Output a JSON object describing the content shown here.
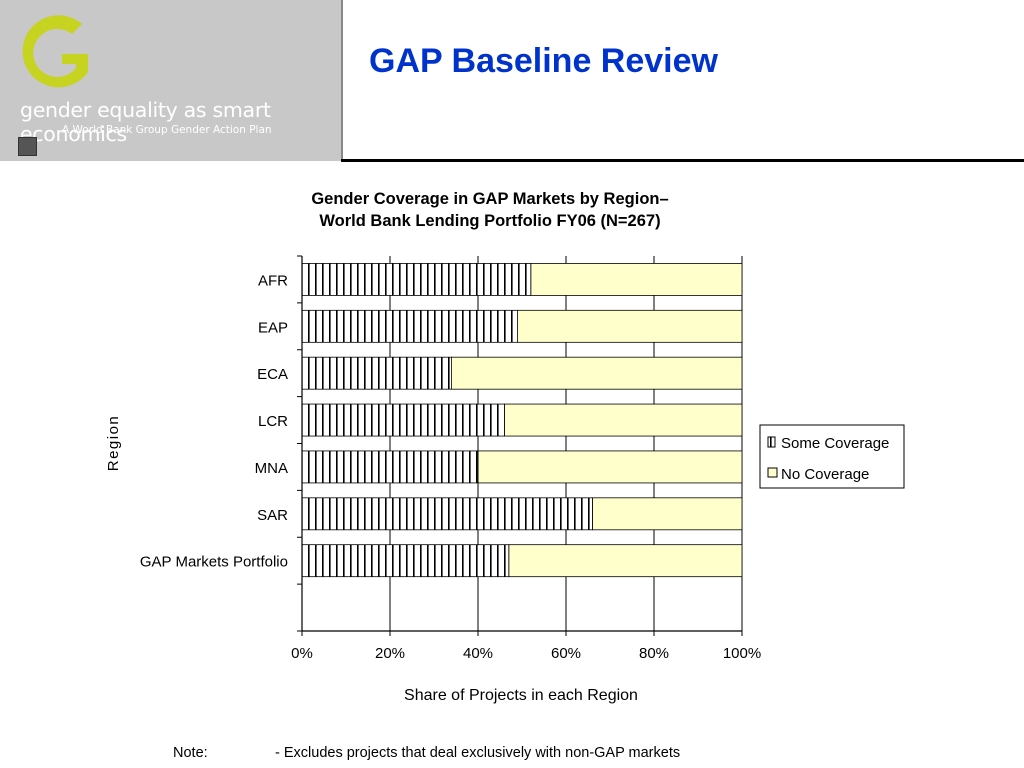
{
  "header": {
    "title": "GAP Baseline Review",
    "logo_text": "gender equality as smart economics",
    "logo_subtext": "A World Bank Group Gender Action Plan"
  },
  "chart_data": {
    "type": "bar",
    "orientation": "horizontal",
    "stacked": true,
    "percent": true,
    "title_lines": [
      "Gender Coverage in GAP Markets by Region–",
      "World Bank Lending Portfolio FY06 (N=267)"
    ],
    "xlabel": "Share of Projects in each Region",
    "ylabel": "Region",
    "xlim": [
      0,
      100
    ],
    "x_ticks": [
      "0%",
      "20%",
      "40%",
      "60%",
      "80%",
      "100%"
    ],
    "categories": [
      "AFR",
      "EAP",
      "ECA",
      "LCR",
      "MNA",
      "SAR",
      "GAP Markets Portfolio"
    ],
    "series": [
      {
        "name": "Some Coverage",
        "values": [
          52,
          49,
          34,
          46,
          40,
          66,
          47
        ]
      },
      {
        "name": "No Coverage",
        "values": [
          48,
          51,
          66,
          54,
          60,
          34,
          53
        ]
      }
    ],
    "colors": {
      "some_coverage": "#ffffff",
      "no_coverage": "#ffffcc",
      "stripe": "#000000"
    },
    "legend_position": "right",
    "grid": "vertical"
  },
  "note": {
    "label": "Note:",
    "text": "- Excludes projects that deal exclusively with non-GAP markets"
  }
}
